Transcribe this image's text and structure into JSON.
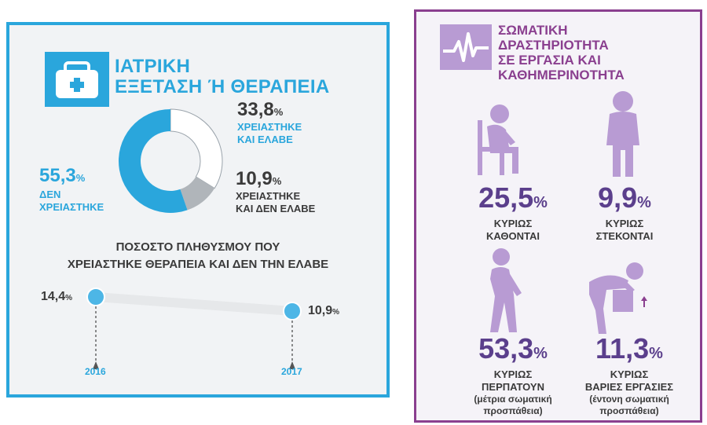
{
  "medical": {
    "title_line1": "ΙΑΤΡΙΚΗ",
    "title_line2": "ΕΞΕΤΑΣΗ Ή ΘΕΡΑΠΕΙΑ",
    "donut": [
      {
        "value": "33,8",
        "pct": "%",
        "label_line1": "ΧΡΕΙΑΣΤΗΚΕ",
        "label_line2": "ΚΑΙ ΕΛΑΒΕ",
        "fraction": 0.338
      },
      {
        "value": "10,9",
        "pct": "%",
        "label_line1": "ΧΡΕΙΑΣΤΗΚΕ",
        "label_line2": "ΚΑΙ ΔΕΝ ΕΛΑΒΕ",
        "fraction": 0.109
      },
      {
        "value": "55,3",
        "pct": "%",
        "label_line1": "ΔΕΝ",
        "label_line2": "ΧΡΕΙΑΣΤΗΚΕ",
        "fraction": 0.553
      }
    ],
    "trend": {
      "title_line1": "ΠΟΣΟΣΤΟ ΠΛΗΘΥΣΜΟΥ ΠΟΥ",
      "title_line2": "ΧΡΕΙΑΣΤΗΚΕ ΘΕΡΑΠΕΙΑ ΚΑΙ ΔΕΝ ΤΗΝ ΕΛΑΒΕ",
      "points": [
        {
          "year": "2016",
          "value": "14,4",
          "pct": "%"
        },
        {
          "year": "2017",
          "value": "10,9",
          "pct": "%"
        }
      ]
    },
    "colors": {
      "accent": "#2aa6dc",
      "dark": "#3a3a3a",
      "light": "#ffffff",
      "grey": "#b0b5ba"
    }
  },
  "activity": {
    "title_line1": "ΣΩΜΑΤΙΚΗ",
    "title_line2": "ΔΡΑΣΤΗΡΙΟΤΗΤΑ",
    "title_line3": "ΣΕ ΕΡΓΑΣΙΑ ΚΑΙ",
    "title_line4": "ΚΑΘΗΜΕΡΙΝΟΤΗΤΑ",
    "stats": [
      {
        "value": "25,5",
        "pct": "%",
        "label_line1": "ΚΥΡΙΩΣ",
        "label_line2": "ΚΑΘΟΝΤΑΙ",
        "icon": "sitting-person-icon"
      },
      {
        "value": "9,9",
        "pct": "%",
        "label_line1": "ΚΥΡΙΩΣ",
        "label_line2": "ΣΤΕΚΟΝΤΑΙ",
        "icon": "standing-person-icon"
      },
      {
        "value": "53,3",
        "pct": "%",
        "label_line1": "ΚΥΡΙΩΣ",
        "label_line2": "ΠΕΡΠΑΤΟΥΝ",
        "note_line1": "(μέτρια σωματική",
        "note_line2": "προσπάθεια)",
        "icon": "walking-person-icon"
      },
      {
        "value": "11,3",
        "pct": "%",
        "label_line1": "ΚΥΡΙΩΣ",
        "label_line2": "ΒΑΡΙΕΣ ΕΡΓΑΣΙΕΣ",
        "note_line1": "(έντονη σωματική",
        "note_line2": "προσπάθεια)",
        "icon": "lifting-person-icon"
      }
    ],
    "colors": {
      "accent": "#8a3f8f",
      "figure": "#b89bd3",
      "number": "#5b3f8c"
    }
  }
}
